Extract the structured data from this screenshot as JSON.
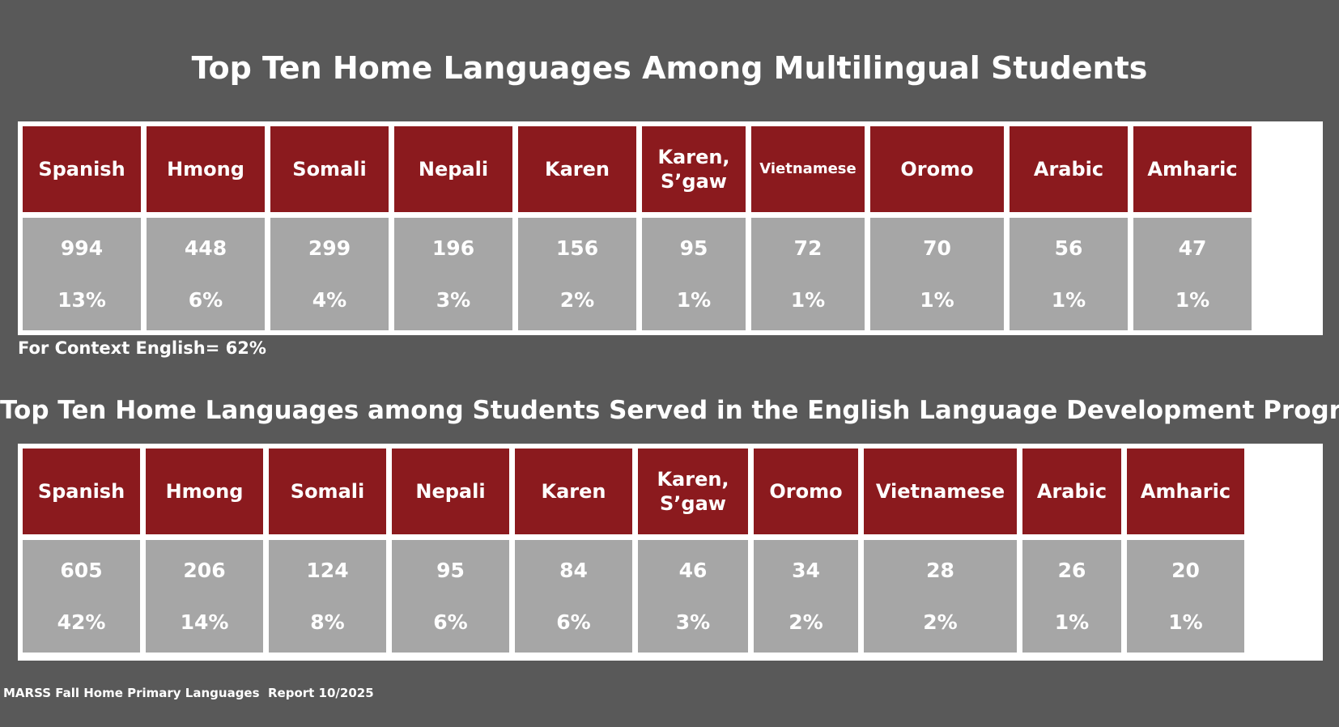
{
  "chart_data": [
    {
      "type": "table",
      "title": "Top Ten Home Languages Among Multilingual Students",
      "columns": [
        {
          "language": "Spanish",
          "count": "994",
          "percent": "13%"
        },
        {
          "language": "Hmong",
          "count": "448",
          "percent": "6%"
        },
        {
          "language": "Somali",
          "count": "299",
          "percent": "4%"
        },
        {
          "language": "Nepali",
          "count": "196",
          "percent": "3%"
        },
        {
          "language": "Karen",
          "count": "156",
          "percent": "2%"
        },
        {
          "language": "Karen,\nS’gaw",
          "count": "95",
          "percent": "1%"
        },
        {
          "language": "Vietnamese",
          "count": "72",
          "percent": "1%"
        },
        {
          "language": "Oromo",
          "count": "70",
          "percent": "1%"
        },
        {
          "language": "Arabic",
          "count": "56",
          "percent": "1%"
        },
        {
          "language": "Amharic",
          "count": "47",
          "percent": "1%"
        }
      ],
      "note": "For Context English= 62%"
    },
    {
      "type": "table",
      "title": "Top Ten Home Languages among Students Served in the English Language Development Program",
      "columns": [
        {
          "language": "Spanish",
          "count": "605",
          "percent": "42%"
        },
        {
          "language": "Hmong",
          "count": "206",
          "percent": "14%"
        },
        {
          "language": "Somali",
          "count": "124",
          "percent": "8%"
        },
        {
          "language": "Nepali",
          "count": "95",
          "percent": "6%"
        },
        {
          "language": "Karen",
          "count": "84",
          "percent": "6%"
        },
        {
          "language": "Karen,\nS’gaw",
          "count": "46",
          "percent": "3%"
        },
        {
          "language": "Oromo",
          "count": "34",
          "percent": "2%"
        },
        {
          "language": "Vietnamese",
          "count": "28",
          "percent": "2%"
        },
        {
          "language": "Arabic",
          "count": "26",
          "percent": "1%"
        },
        {
          "language": "Amharic",
          "count": "20",
          "percent": "1%"
        }
      ]
    }
  ],
  "footer": {
    "source": "MARSS Fall Home Primary Languages  Report 10/2025"
  },
  "colors": {
    "background": "#595959",
    "header": "#8b1a1e",
    "data_cell": "#a6a6a6",
    "border": "#ffffff"
  }
}
